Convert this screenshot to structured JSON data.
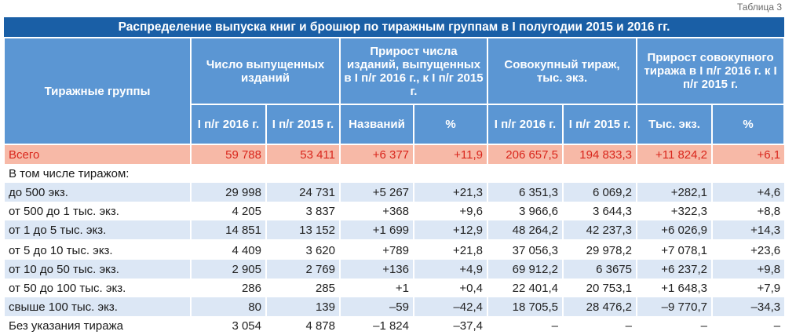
{
  "table_label": "Таблица 3",
  "title": "Распределение выпуска книг и брошюр по тиражным группам в I полугодии 2015 и 2016 гг.",
  "headers": {
    "groups": "Тиражные группы",
    "issued": "Число выпущенных изданий",
    "growth_issued": "Прирост числа изданий, выпущенных в I п/г 2016 г., к I п/г 2015 г.",
    "circulation": "Совокупный тираж, тыс. экз.",
    "growth_circulation": "Прирост совокупного тиража в I п/г 2016 г. к I п/г 2015 г.",
    "sub": [
      "I п/г 2016 г.",
      "I п/г 2015 г.",
      "Названий",
      "%",
      "I п/г 2016 г.",
      "I п/г 2015 г.",
      "Тыс. экз.",
      "%"
    ]
  },
  "rows": [
    {
      "label": "Всего",
      "values": [
        "59 788",
        "53 411",
        "+6 377",
        "+11,9",
        "206 657,5",
        "194 833,3",
        "+11 824,2",
        "+6,1"
      ]
    },
    {
      "label": "В том числе тиражом:",
      "values": [
        "",
        "",
        "",
        "",
        "",
        "",
        "",
        ""
      ]
    },
    {
      "label": "до 500 экз.",
      "values": [
        "29 998",
        "24 731",
        "+5 267",
        "+21,3",
        "6 351,3",
        "6 069,2",
        "+282,1",
        "+4,6"
      ]
    },
    {
      "label": "от 500 до 1 тыс. экз.",
      "values": [
        "4 205",
        "3 837",
        "+368",
        "+9,6",
        "3 966,6",
        "3 644,3",
        "+322,3",
        "+8,8"
      ]
    },
    {
      "label": "от 1 до 5 тыс. экз.",
      "values": [
        "14 851",
        "13 152",
        "+1 699",
        "+12,9",
        "48 264,2",
        "42 237,3",
        "+6 026,9",
        "+14,3"
      ]
    },
    {
      "label": "от 5 до 10 тыс. экз.",
      "values": [
        "4 409",
        "3 620",
        "+789",
        "+21,8",
        "37 056,3",
        "29 978,2",
        "+7 078,1",
        "+23,6"
      ]
    },
    {
      "label": "от 10 до 50 тыс. экз.",
      "values": [
        "2 905",
        "2 769",
        "+136",
        "+4,9",
        "69 912,2",
        "6 3675",
        "+6 237,2",
        "+9,8"
      ]
    },
    {
      "label": "от 50 до 100 тыс. экз.",
      "values": [
        "286",
        "285",
        "+1",
        "+0,4",
        "22 401,4",
        "20 753,1",
        "+1 648,3",
        "+7,9"
      ]
    },
    {
      "label": "свыше 100 тыс. экз.",
      "values": [
        "80",
        "139",
        "–59",
        "–42,4",
        "18 705,5",
        "28 476,2",
        "–9 770,7",
        "–34,3"
      ]
    },
    {
      "label": "Без указания тиража",
      "values": [
        "3 054",
        "4 878",
        "–1 824",
        "–37,4",
        "–",
        "–",
        "–",
        "–"
      ]
    }
  ],
  "colors": {
    "title_bg": "#1a5fa6",
    "header_bg": "#5b96d3",
    "stripe_bg": "#dce7f5",
    "total_bg": "#f7b9a7",
    "total_text": "#d9261c"
  }
}
